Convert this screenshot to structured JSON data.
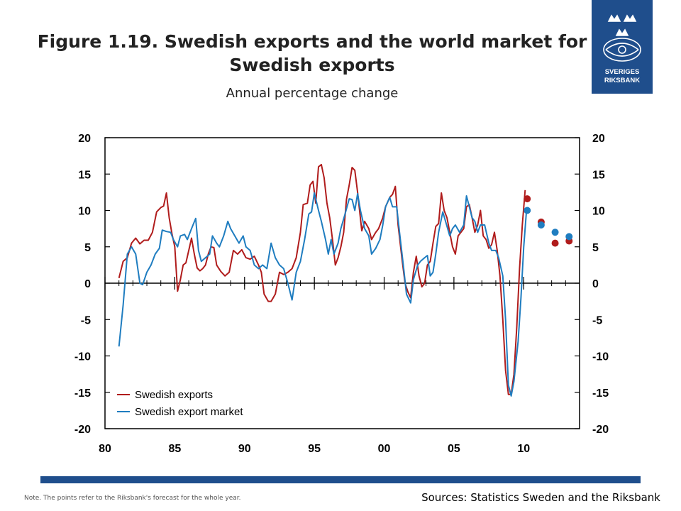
{
  "header": {
    "title_line1": "Figure 1.19. Swedish exports and the world market for",
    "title_line2": "Swedish exports",
    "subtitle": "Annual percentage change"
  },
  "logo": {
    "line1": "SVERIGES",
    "line2": "RIKSBANK",
    "color": "#1f4e8c"
  },
  "footer": {
    "note": "Note. The points refer to the Riksbank's forecast for the whole year.",
    "sources": "Sources: Statistics Sweden and the Riksbank"
  },
  "colors": {
    "exports": "#b01c1c",
    "market": "#1f7dc0",
    "accent": "#1f4e8c"
  },
  "chart_data": {
    "type": "line",
    "title": "Figure 1.19. Swedish exports and the world market for Swedish exports",
    "subtitle": "Annual percentage change",
    "xlim": [
      1980,
      2014
    ],
    "ylim": [
      -20,
      20
    ],
    "x_tick_labels": [
      "80",
      "85",
      "90",
      "95",
      "00",
      "05",
      "10"
    ],
    "x_tick_values": [
      1980,
      1985,
      1990,
      1995,
      2000,
      2005,
      2010
    ],
    "y_ticks": [
      20,
      15,
      10,
      5,
      0,
      -5,
      -10,
      -15,
      -20
    ],
    "legend": {
      "position": "bottom-left"
    },
    "series": [
      {
        "name": "Swedish exports",
        "color": "#b01c1c",
        "points": [
          [
            1981.0,
            0.7
          ],
          [
            1981.3,
            3.0
          ],
          [
            1981.6,
            3.5
          ],
          [
            1981.9,
            5.5
          ],
          [
            1982.2,
            6.2
          ],
          [
            1982.5,
            5.4
          ],
          [
            1982.8,
            5.9
          ],
          [
            1983.1,
            5.9
          ],
          [
            1983.4,
            7.0
          ],
          [
            1983.7,
            9.8
          ],
          [
            1984.0,
            10.4
          ],
          [
            1984.2,
            10.6
          ],
          [
            1984.4,
            12.4
          ],
          [
            1984.6,
            9.0
          ],
          [
            1984.8,
            6.8
          ],
          [
            1985.0,
            5.0
          ],
          [
            1985.2,
            -1.1
          ],
          [
            1985.4,
            0.5
          ],
          [
            1985.6,
            2.5
          ],
          [
            1985.8,
            2.8
          ],
          [
            1986.0,
            4.5
          ],
          [
            1986.2,
            6.2
          ],
          [
            1986.4,
            4.0
          ],
          [
            1986.6,
            2.1
          ],
          [
            1986.8,
            1.7
          ],
          [
            1987.0,
            2.0
          ],
          [
            1987.2,
            2.5
          ],
          [
            1987.4,
            4.0
          ],
          [
            1987.6,
            5.0
          ],
          [
            1987.8,
            4.9
          ],
          [
            1988.0,
            2.5
          ],
          [
            1988.3,
            1.6
          ],
          [
            1988.6,
            1.0
          ],
          [
            1988.9,
            1.5
          ],
          [
            1989.2,
            4.5
          ],
          [
            1989.5,
            4.0
          ],
          [
            1989.8,
            4.6
          ],
          [
            1990.1,
            3.5
          ],
          [
            1990.4,
            3.3
          ],
          [
            1990.7,
            3.7
          ],
          [
            1991.0,
            2.5
          ],
          [
            1991.2,
            1.5
          ],
          [
            1991.4,
            -1.5
          ],
          [
            1991.7,
            -2.5
          ],
          [
            1991.9,
            -2.5
          ],
          [
            1992.2,
            -1.5
          ],
          [
            1992.5,
            1.5
          ],
          [
            1992.8,
            1.2
          ],
          [
            1993.1,
            1.5
          ],
          [
            1993.4,
            2.0
          ],
          [
            1993.7,
            3.5
          ],
          [
            1994.0,
            7.0
          ],
          [
            1994.2,
            10.8
          ],
          [
            1994.5,
            11.0
          ],
          [
            1994.7,
            13.5
          ],
          [
            1994.9,
            14.0
          ],
          [
            1995.1,
            11.0
          ],
          [
            1995.3,
            16.0
          ],
          [
            1995.5,
            16.3
          ],
          [
            1995.7,
            14.5
          ],
          [
            1995.9,
            11.0
          ],
          [
            1996.1,
            9.0
          ],
          [
            1996.3,
            6.0
          ],
          [
            1996.5,
            2.5
          ],
          [
            1996.7,
            3.5
          ],
          [
            1996.9,
            5.0
          ],
          [
            1997.1,
            7.0
          ],
          [
            1997.3,
            11.5
          ],
          [
            1997.5,
            13.5
          ],
          [
            1997.7,
            15.9
          ],
          [
            1997.9,
            15.5
          ],
          [
            1998.1,
            12.5
          ],
          [
            1998.4,
            7.2
          ],
          [
            1998.6,
            8.5
          ],
          [
            1998.9,
            7.5
          ],
          [
            1999.1,
            6.0
          ],
          [
            1999.4,
            7.0
          ],
          [
            1999.6,
            7.5
          ],
          [
            1999.9,
            9.0
          ],
          [
            2000.1,
            10.5
          ],
          [
            2000.4,
            11.8
          ],
          [
            2000.6,
            12.2
          ],
          [
            2000.8,
            13.3
          ],
          [
            2001.0,
            8.0
          ],
          [
            2001.3,
            3.0
          ],
          [
            2001.5,
            0.0
          ],
          [
            2001.7,
            -1.2
          ],
          [
            2001.9,
            -2.0
          ],
          [
            2002.1,
            1.5
          ],
          [
            2002.3,
            3.7
          ],
          [
            2002.5,
            1.0
          ],
          [
            2002.7,
            -0.5
          ],
          [
            2002.9,
            0.0
          ],
          [
            2003.1,
            2.5
          ],
          [
            2003.3,
            3.0
          ],
          [
            2003.5,
            5.5
          ],
          [
            2003.7,
            7.8
          ],
          [
            2003.9,
            8.2
          ],
          [
            2004.1,
            12.4
          ],
          [
            2004.3,
            10.0
          ],
          [
            2004.5,
            9.0
          ],
          [
            2004.7,
            7.0
          ],
          [
            2004.9,
            5.0
          ],
          [
            2005.1,
            4.0
          ],
          [
            2005.3,
            6.5
          ],
          [
            2005.5,
            7.0
          ],
          [
            2005.7,
            7.5
          ],
          [
            2005.9,
            10.5
          ],
          [
            2006.1,
            10.8
          ],
          [
            2006.3,
            9.0
          ],
          [
            2006.5,
            7.0
          ],
          [
            2006.7,
            8.0
          ],
          [
            2006.9,
            10.0
          ],
          [
            2007.1,
            6.5
          ],
          [
            2007.3,
            6.0
          ],
          [
            2007.5,
            4.8
          ],
          [
            2007.7,
            5.3
          ],
          [
            2007.9,
            7.0
          ],
          [
            2008.1,
            4.5
          ],
          [
            2008.3,
            1.0
          ],
          [
            2008.5,
            -5.0
          ],
          [
            2008.7,
            -12.0
          ],
          [
            2008.9,
            -15.3
          ],
          [
            2009.1,
            -15.3
          ],
          [
            2009.3,
            -12.5
          ],
          [
            2009.5,
            -6.0
          ],
          [
            2009.7,
            2.0
          ],
          [
            2009.9,
            8.0
          ],
          [
            2010.1,
            12.8
          ]
        ],
        "forecast": [
          [
            2010.25,
            11.6
          ],
          [
            2011.25,
            8.4
          ],
          [
            2012.25,
            5.5
          ],
          [
            2013.25,
            5.8
          ]
        ]
      },
      {
        "name": "Swedish export market",
        "color": "#1f7dc0",
        "points": [
          [
            1981.0,
            -8.7
          ],
          [
            1981.3,
            -3.0
          ],
          [
            1981.6,
            4.0
          ],
          [
            1981.9,
            5.0
          ],
          [
            1982.2,
            4.0
          ],
          [
            1982.5,
            0.0
          ],
          [
            1982.7,
            -0.2
          ],
          [
            1983.0,
            1.5
          ],
          [
            1983.3,
            2.5
          ],
          [
            1983.6,
            4.0
          ],
          [
            1983.9,
            4.8
          ],
          [
            1984.1,
            7.3
          ],
          [
            1984.4,
            7.1
          ],
          [
            1984.7,
            7.0
          ],
          [
            1984.9,
            6.0
          ],
          [
            1985.2,
            5.0
          ],
          [
            1985.4,
            6.5
          ],
          [
            1985.7,
            6.7
          ],
          [
            1985.9,
            6.0
          ],
          [
            1986.2,
            7.5
          ],
          [
            1986.5,
            8.9
          ],
          [
            1986.7,
            4.5
          ],
          [
            1986.9,
            3.0
          ],
          [
            1987.2,
            3.5
          ],
          [
            1987.5,
            4.0
          ],
          [
            1987.7,
            6.5
          ],
          [
            1988.0,
            5.5
          ],
          [
            1988.2,
            5.0
          ],
          [
            1988.5,
            6.5
          ],
          [
            1988.8,
            8.5
          ],
          [
            1989.0,
            7.5
          ],
          [
            1989.3,
            6.5
          ],
          [
            1989.6,
            5.5
          ],
          [
            1989.9,
            6.5
          ],
          [
            1990.1,
            5.0
          ],
          [
            1990.4,
            4.5
          ],
          [
            1990.7,
            2.5
          ],
          [
            1991.0,
            2.0
          ],
          [
            1991.3,
            2.5
          ],
          [
            1991.6,
            2.0
          ],
          [
            1991.9,
            5.5
          ],
          [
            1992.2,
            3.5
          ],
          [
            1992.5,
            2.5
          ],
          [
            1992.8,
            2.0
          ],
          [
            1993.1,
            0.0
          ],
          [
            1993.4,
            -2.3
          ],
          [
            1993.7,
            1.5
          ],
          [
            1994.0,
            3.0
          ],
          [
            1994.3,
            6.0
          ],
          [
            1994.6,
            9.5
          ],
          [
            1994.8,
            9.8
          ],
          [
            1995.0,
            12.4
          ],
          [
            1995.3,
            10.0
          ],
          [
            1995.5,
            8.5
          ],
          [
            1995.8,
            6.0
          ],
          [
            1996.0,
            4.0
          ],
          [
            1996.2,
            6.0
          ],
          [
            1996.4,
            4.0
          ],
          [
            1996.7,
            5.5
          ],
          [
            1996.9,
            7.5
          ],
          [
            1997.2,
            9.5
          ],
          [
            1997.5,
            11.6
          ],
          [
            1997.7,
            11.5
          ],
          [
            1997.9,
            10.0
          ],
          [
            1998.1,
            12.3
          ],
          [
            1998.3,
            10.0
          ],
          [
            1998.6,
            7.5
          ],
          [
            1998.9,
            6.5
          ],
          [
            1999.1,
            4.0
          ],
          [
            1999.4,
            4.8
          ],
          [
            1999.7,
            6.0
          ],
          [
            1999.9,
            8.0
          ],
          [
            2000.1,
            10.5
          ],
          [
            2000.4,
            11.8
          ],
          [
            2000.6,
            10.5
          ],
          [
            2000.9,
            10.5
          ],
          [
            2001.1,
            7.0
          ],
          [
            2001.4,
            2.0
          ],
          [
            2001.6,
            -1.5
          ],
          [
            2001.9,
            -2.7
          ],
          [
            2002.1,
            0.5
          ],
          [
            2002.4,
            2.5
          ],
          [
            2002.6,
            3.0
          ],
          [
            2002.9,
            3.5
          ],
          [
            2003.1,
            3.8
          ],
          [
            2003.3,
            1.0
          ],
          [
            2003.5,
            1.5
          ],
          [
            2003.7,
            4.0
          ],
          [
            2003.9,
            7.0
          ],
          [
            2004.2,
            9.8
          ],
          [
            2004.4,
            8.5
          ],
          [
            2004.7,
            6.5
          ],
          [
            2004.9,
            7.5
          ],
          [
            2005.1,
            8.0
          ],
          [
            2005.4,
            7.0
          ],
          [
            2005.7,
            8.0
          ],
          [
            2005.9,
            12.0
          ],
          [
            2006.1,
            10.5
          ],
          [
            2006.3,
            9.0
          ],
          [
            2006.5,
            8.5
          ],
          [
            2006.7,
            7.0
          ],
          [
            2006.9,
            8.0
          ],
          [
            2007.2,
            8.0
          ],
          [
            2007.5,
            5.5
          ],
          [
            2007.7,
            4.5
          ],
          [
            2008.0,
            4.5
          ],
          [
            2008.2,
            3.5
          ],
          [
            2008.5,
            1.0
          ],
          [
            2008.7,
            -5.0
          ],
          [
            2008.9,
            -14.0
          ],
          [
            2009.1,
            -15.5
          ],
          [
            2009.3,
            -13.5
          ],
          [
            2009.6,
            -8.0
          ],
          [
            2009.8,
            -2.0
          ],
          [
            2010.0,
            5.0
          ],
          [
            2010.2,
            10.0
          ]
        ],
        "forecast": [
          [
            2010.25,
            10.0
          ],
          [
            2011.25,
            8.0
          ],
          [
            2012.25,
            7.0
          ],
          [
            2013.25,
            6.4
          ]
        ]
      }
    ]
  }
}
